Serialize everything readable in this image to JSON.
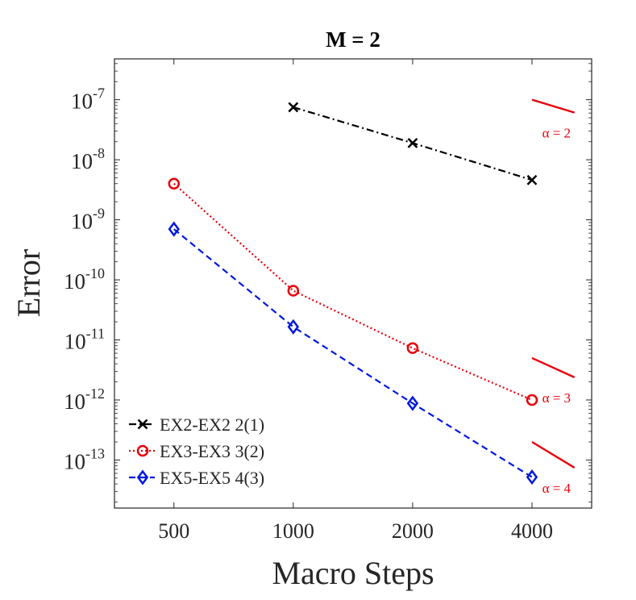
{
  "chart_data": {
    "type": "line",
    "title": "M = 2",
    "xlabel": "Macro Steps",
    "ylabel": "Error",
    "xscale": "log2",
    "yscale": "log10",
    "xlim": [
      354,
      5657
    ],
    "ylim_log10": [
      -13.8,
      -6.32
    ],
    "x_ticks": [
      500,
      1000,
      2000,
      4000
    ],
    "x_tick_labels": [
      "500",
      "1000",
      "2000",
      "4000"
    ],
    "y_ticks_log10": [
      -13,
      -12,
      -11,
      -10,
      -9,
      -8,
      -7
    ],
    "y_tick_labels": [
      {
        "base": "10",
        "exp": "-13"
      },
      {
        "base": "10",
        "exp": "-12"
      },
      {
        "base": "10",
        "exp": "-11"
      },
      {
        "base": "10",
        "exp": "-10"
      },
      {
        "base": "10",
        "exp": "-9"
      },
      {
        "base": "10",
        "exp": "-8"
      },
      {
        "base": "10",
        "exp": "-7"
      }
    ],
    "grid": false,
    "legend_position": "bottom-left",
    "series": [
      {
        "name": "EX2-EX2 2(1)",
        "color": "#000000",
        "line_style": "dashdot",
        "marker": "x",
        "x": [
          1000,
          2000,
          4000
        ],
        "y": [
          7.5e-08,
          1.9e-08,
          4.6e-09
        ]
      },
      {
        "name": "EX3-EX3 3(2)",
        "color": "#e8000b",
        "line_style": "dotted",
        "marker": "circle",
        "x": [
          500,
          1000,
          2000,
          4000
        ],
        "y": [
          4e-09,
          6.6e-11,
          7.3e-12,
          1e-12
        ]
      },
      {
        "name": "EX5-EX5 4(3)",
        "color": "#0018e0",
        "line_style": "dashed",
        "marker": "diamond",
        "x": [
          500,
          1000,
          2000,
          4000
        ],
        "y": [
          7e-10,
          1.65e-11,
          8.8e-13,
          5.2e-14
        ]
      }
    ],
    "slope_references": [
      {
        "label": "α = 2",
        "alpha": 2,
        "x_start": 4000,
        "x_end": 5120,
        "y_start": 1e-07,
        "color": "#e8000b"
      },
      {
        "label": "α = 3",
        "alpha": 3,
        "x_start": 4000,
        "x_end": 5120,
        "y_start": 5e-12,
        "color": "#e8000b"
      },
      {
        "label": "α = 4",
        "alpha": 4,
        "x_start": 4000,
        "x_end": 5120,
        "y_start": 2e-13,
        "color": "#e8000b"
      }
    ]
  }
}
